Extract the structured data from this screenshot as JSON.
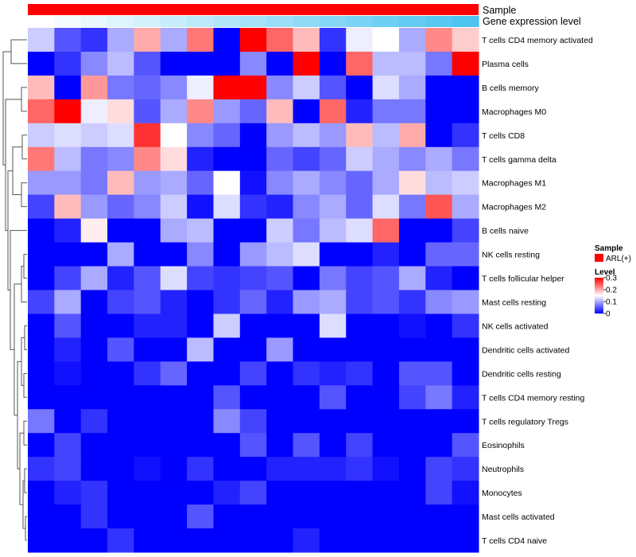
{
  "chart_data": {
    "type": "heatmap",
    "annotation_tracks": [
      {
        "name": "Sample",
        "level_name": "ARL(+)",
        "color": "#ff0000"
      },
      {
        "name": "Gene expression level"
      }
    ],
    "gene_expression_level_scale": {
      "low_color": "#ffffff",
      "high_color": "#4dc4f0"
    },
    "row_labels": [
      "T cells CD4 memory activated",
      "Plasma cells",
      "B cells memory",
      "Macrophages M0",
      "T cells CD8",
      "T cells gamma delta",
      "Macrophages M1",
      "Macrophages M2",
      "B cells naive",
      "NK cells resting",
      "T cells follicular helper",
      "Mast cells resting",
      "NK cells activated",
      "Dendritic cells activated",
      "Dendritic cells resting",
      "T cells CD4 memory resting",
      "T cells regulatory  Tregs",
      "Eosinophils",
      "Neutrophils",
      "Monocytes",
      "Mast cells activated",
      "T cells CD4 naive"
    ],
    "n_columns": 17,
    "values": [
      [
        0.12,
        0.05,
        0.03,
        0.1,
        0.2,
        0.1,
        0.23,
        0.0,
        0.3,
        0.24,
        0.19,
        0.03,
        0.14,
        0.15,
        0.1,
        0.22,
        0.18
      ],
      [
        0.0,
        0.03,
        0.08,
        0.11,
        0.05,
        0.0,
        0.0,
        0.0,
        0.08,
        0.0,
        0.3,
        0.0,
        0.24,
        0.11,
        0.11,
        0.07,
        0.3
      ],
      [
        0.19,
        0.0,
        0.21,
        0.07,
        0.06,
        0.08,
        0.14,
        0.3,
        0.3,
        0.08,
        0.12,
        0.05,
        0.0,
        0.13,
        0.1,
        0.0,
        0.0
      ],
      [
        0.24,
        0.3,
        0.14,
        0.17,
        0.05,
        0.1,
        0.22,
        0.09,
        0.06,
        0.19,
        0.0,
        0.24,
        0.02,
        0.07,
        0.07,
        0.0,
        0.0
      ],
      [
        0.12,
        0.13,
        0.12,
        0.13,
        0.27,
        0.15,
        0.08,
        0.06,
        0.0,
        0.09,
        0.11,
        0.09,
        0.19,
        0.11,
        0.2,
        0.0,
        0.03
      ],
      [
        0.23,
        0.11,
        0.07,
        0.08,
        0.22,
        0.17,
        0.02,
        0.0,
        0.0,
        0.06,
        0.04,
        0.06,
        0.12,
        0.1,
        0.08,
        0.1,
        0.07
      ],
      [
        0.09,
        0.09,
        0.07,
        0.19,
        0.09,
        0.1,
        0.06,
        0.15,
        0.01,
        0.08,
        0.1,
        0.08,
        0.06,
        0.1,
        0.17,
        0.11,
        0.12
      ],
      [
        0.04,
        0.19,
        0.09,
        0.06,
        0.08,
        0.12,
        0.01,
        0.13,
        0.03,
        0.02,
        0.08,
        0.1,
        0.06,
        0.13,
        0.07,
        0.25,
        0.1
      ],
      [
        0.0,
        0.02,
        0.16,
        0.0,
        0.0,
        0.1,
        0.11,
        0.0,
        0.0,
        0.12,
        0.07,
        0.11,
        0.13,
        0.24,
        0.0,
        0.0,
        0.04
      ],
      [
        0.0,
        0.0,
        0.0,
        0.1,
        0.0,
        0.0,
        0.08,
        0.0,
        0.09,
        0.11,
        0.13,
        0.0,
        0.0,
        0.02,
        0.0,
        0.06,
        0.06
      ],
      [
        0.0,
        0.04,
        0.1,
        0.02,
        0.05,
        0.13,
        0.04,
        0.03,
        0.04,
        0.05,
        0.0,
        0.07,
        0.04,
        0.05,
        0.1,
        0.02,
        0.0
      ],
      [
        0.04,
        0.1,
        0.0,
        0.04,
        0.05,
        0.02,
        0.0,
        0.03,
        0.06,
        0.02,
        0.09,
        0.1,
        0.04,
        0.05,
        0.03,
        0.08,
        0.09
      ],
      [
        0.0,
        0.05,
        0.0,
        0.0,
        0.02,
        0.02,
        0.0,
        0.12,
        0.0,
        0.0,
        0.0,
        0.13,
        0.0,
        0.0,
        0.01,
        0.0,
        0.03
      ],
      [
        0.0,
        0.02,
        0.0,
        0.05,
        0.0,
        0.0,
        0.11,
        0.0,
        0.0,
        0.09,
        0.0,
        0.0,
        0.0,
        0.0,
        0.0,
        0.0,
        0.0
      ],
      [
        0.0,
        0.01,
        0.0,
        0.0,
        0.03,
        0.06,
        0.0,
        0.0,
        0.04,
        0.0,
        0.03,
        0.02,
        0.03,
        0.0,
        0.05,
        0.05,
        0.0
      ],
      [
        0.0,
        0.0,
        0.0,
        0.0,
        0.0,
        0.0,
        0.0,
        0.05,
        0.0,
        0.0,
        0.0,
        0.05,
        0.0,
        0.0,
        0.04,
        0.07,
        0.02
      ],
      [
        0.07,
        0.0,
        0.03,
        0.0,
        0.0,
        0.0,
        0.0,
        0.08,
        0.04,
        0.0,
        0.0,
        0.0,
        0.0,
        0.0,
        0.0,
        0.0,
        0.0
      ],
      [
        0.0,
        0.04,
        0.0,
        0.0,
        0.0,
        0.0,
        0.0,
        0.0,
        0.05,
        0.0,
        0.05,
        0.0,
        0.04,
        0.0,
        0.0,
        0.0,
        0.05
      ],
      [
        0.03,
        0.04,
        0.0,
        0.0,
        0.01,
        0.0,
        0.03,
        0.0,
        0.0,
        0.02,
        0.02,
        0.02,
        0.03,
        0.01,
        0.0,
        0.04,
        0.03
      ],
      [
        0.0,
        0.02,
        0.03,
        0.0,
        0.0,
        0.0,
        0.0,
        0.02,
        0.04,
        0.0,
        0.0,
        0.0,
        0.0,
        0.0,
        0.0,
        0.04,
        0.01
      ],
      [
        0.0,
        0.0,
        0.03,
        0.0,
        0.0,
        0.0,
        0.05,
        0.0,
        0.0,
        0.0,
        0.0,
        0.0,
        0.0,
        0.0,
        0.0,
        0.0,
        0.0
      ],
      [
        0.0,
        0.0,
        0.0,
        0.03,
        0.0,
        0.0,
        0.0,
        0.0,
        0.0,
        0.0,
        0.02,
        0.0,
        0.0,
        0.0,
        0.0,
        0.0,
        0.0
      ]
    ],
    "color_scale": {
      "low": "#0000ff",
      "mid": "#ffffff",
      "high": "#ff0000",
      "min": 0,
      "mid_value": 0.15,
      "max": 0.3
    },
    "legend": {
      "sample_title": "Sample",
      "sample_entry": "ARL(+)",
      "sample_color": "#ff0000",
      "level_title": "Level",
      "level_ticks": [
        "0.3",
        "0.2",
        "0.1",
        "0"
      ],
      "level_tick_values": [
        0.3,
        0.2,
        0.1,
        0
      ]
    }
  }
}
